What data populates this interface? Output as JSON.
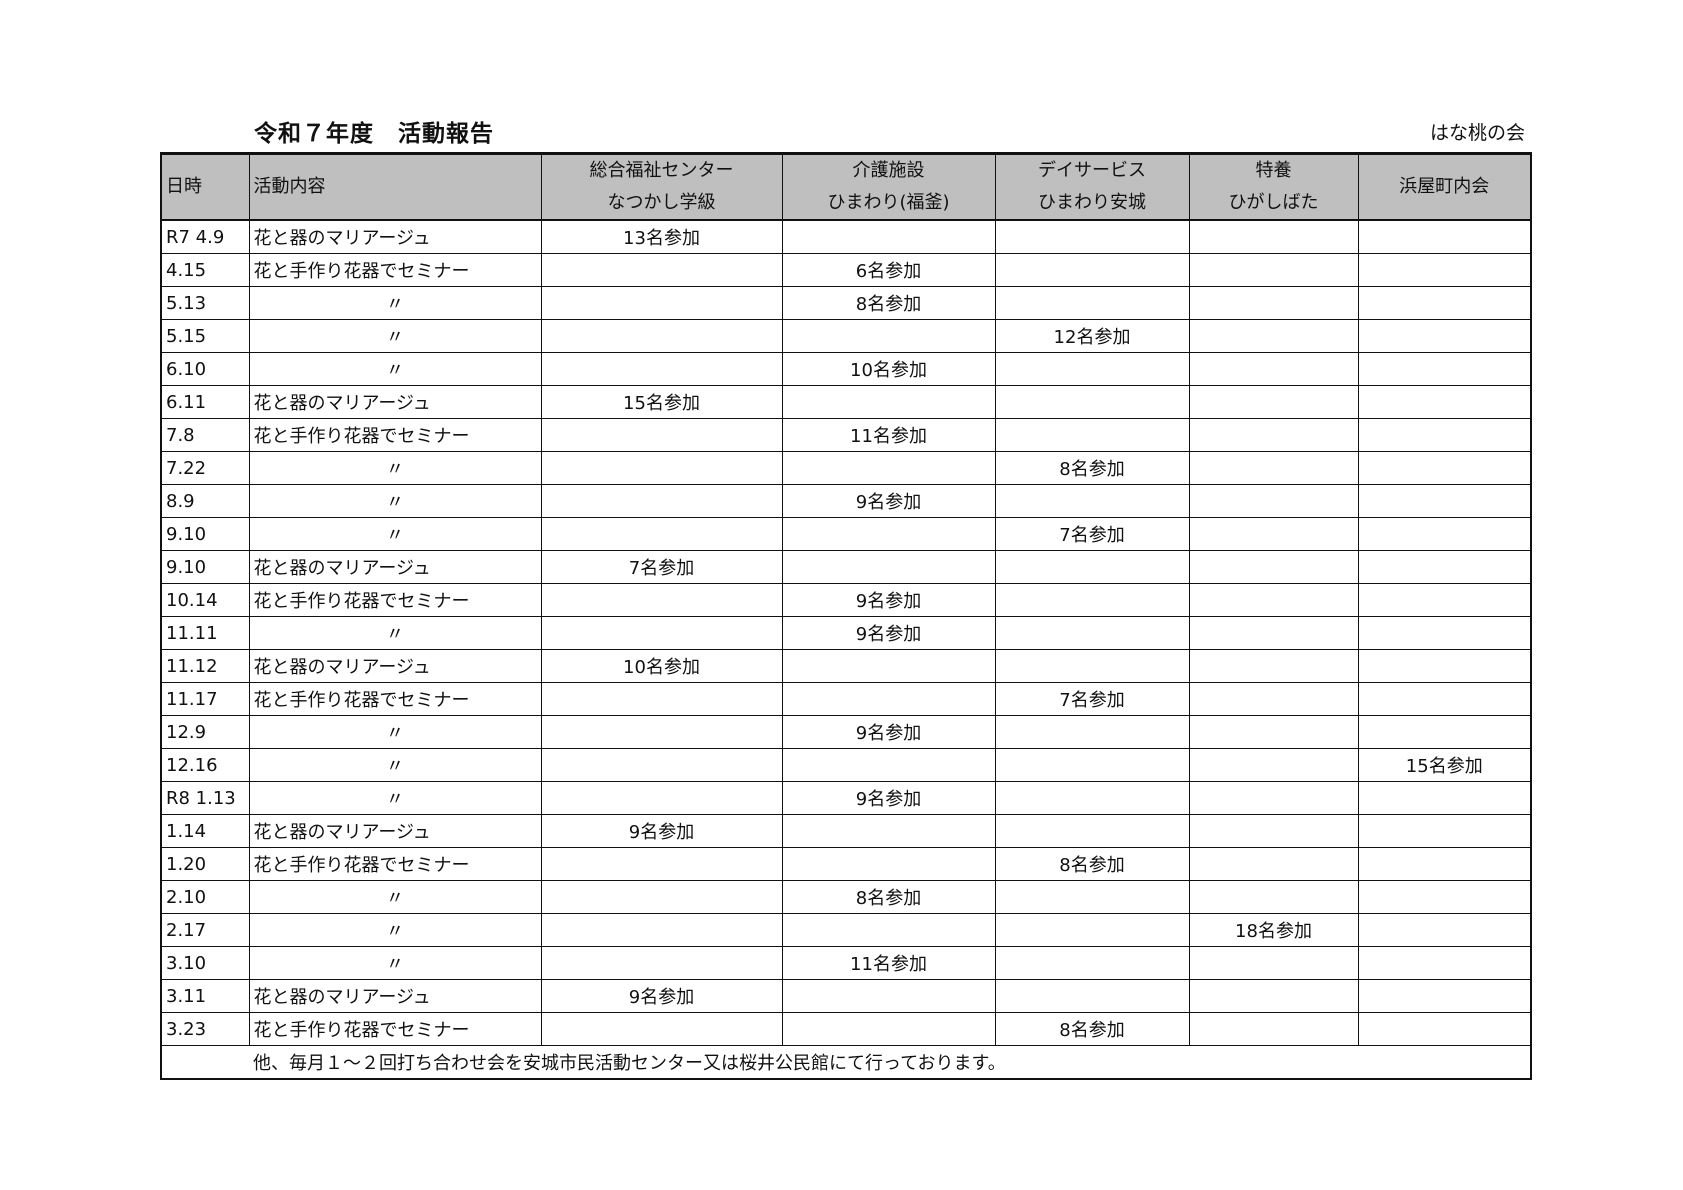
{
  "title": "令和７年度　活動報告",
  "organization": "はな桃の会",
  "headers": [
    {
      "line1": "日時",
      "line2": ""
    },
    {
      "line1": "活動内容",
      "line2": ""
    },
    {
      "line1": "総合福祉センター",
      "line2": "なつかし学級"
    },
    {
      "line1": "介護施設",
      "line2": "ひまわり(福釜)"
    },
    {
      "line1": "デイサービス",
      "line2": "ひまわり安城"
    },
    {
      "line1": "特養",
      "line2": "ひがしばた"
    },
    {
      "line1": "浜屋町内会",
      "line2": ""
    }
  ],
  "rows": [
    {
      "date": "R7 4.9",
      "activity": "花と器のマリアージュ",
      "cells": [
        "13名参加",
        "",
        "",
        "",
        ""
      ]
    },
    {
      "date": "4.15",
      "activity": "花と手作り花器でセミナー",
      "cells": [
        "",
        "6名参加",
        "",
        "",
        ""
      ]
    },
    {
      "date": "5.13",
      "activity": "〃",
      "cells": [
        "",
        "8名参加",
        "",
        "",
        ""
      ]
    },
    {
      "date": "5.15",
      "activity": "〃",
      "cells": [
        "",
        "",
        "12名参加",
        "",
        ""
      ]
    },
    {
      "date": "6.10",
      "activity": "〃",
      "cells": [
        "",
        "10名参加",
        "",
        "",
        ""
      ]
    },
    {
      "date": "6.11",
      "activity": "花と器のマリアージュ",
      "cells": [
        "15名参加",
        "",
        "",
        "",
        ""
      ]
    },
    {
      "date": "7.8",
      "activity": "花と手作り花器でセミナー",
      "cells": [
        "",
        "11名参加",
        "",
        "",
        ""
      ]
    },
    {
      "date": "7.22",
      "activity": "〃",
      "cells": [
        "",
        "",
        "8名参加",
        "",
        ""
      ]
    },
    {
      "date": "8.9",
      "activity": "〃",
      "cells": [
        "",
        "9名参加",
        "",
        "",
        ""
      ]
    },
    {
      "date": "9.10",
      "activity": "〃",
      "cells": [
        "",
        "",
        "7名参加",
        "",
        ""
      ]
    },
    {
      "date": "9.10",
      "activity": "花と器のマリアージュ",
      "cells": [
        "7名参加",
        "",
        "",
        "",
        ""
      ]
    },
    {
      "date": "10.14",
      "activity": "花と手作り花器でセミナー",
      "cells": [
        "",
        "9名参加",
        "",
        "",
        ""
      ]
    },
    {
      "date": "11.11",
      "activity": "〃",
      "cells": [
        "",
        "9名参加",
        "",
        "",
        ""
      ]
    },
    {
      "date": "11.12",
      "activity": "花と器のマリアージュ",
      "cells": [
        "10名参加",
        "",
        "",
        "",
        ""
      ]
    },
    {
      "date": "11.17",
      "activity": "花と手作り花器でセミナー",
      "cells": [
        "",
        "",
        "7名参加",
        "",
        ""
      ]
    },
    {
      "date": "12.9",
      "activity": "〃",
      "cells": [
        "",
        "9名参加",
        "",
        "",
        ""
      ]
    },
    {
      "date": "12.16",
      "activity": "〃",
      "cells": [
        "",
        "",
        "",
        "",
        "15名参加"
      ]
    },
    {
      "date": "R8 1.13",
      "activity": "〃",
      "cells": [
        "",
        "9名参加",
        "",
        "",
        ""
      ]
    },
    {
      "date": "1.14",
      "activity": "花と器のマリアージュ",
      "cells": [
        "9名参加",
        "",
        "",
        "",
        ""
      ]
    },
    {
      "date": "1.20",
      "activity": "花と手作り花器でセミナー",
      "cells": [
        "",
        "",
        "8名参加",
        "",
        ""
      ]
    },
    {
      "date": "2.10",
      "activity": "〃",
      "cells": [
        "",
        "8名参加",
        "",
        "",
        ""
      ]
    },
    {
      "date": "2.17",
      "activity": "〃",
      "cells": [
        "",
        "",
        "",
        "18名参加",
        ""
      ]
    },
    {
      "date": "3.10",
      "activity": "〃",
      "cells": [
        "",
        "11名参加",
        "",
        "",
        ""
      ]
    },
    {
      "date": "3.11",
      "activity": "花と器のマリアージュ",
      "cells": [
        "9名参加",
        "",
        "",
        "",
        ""
      ]
    },
    {
      "date": "3.23",
      "activity": "花と手作り花器でセミナー",
      "cells": [
        "",
        "",
        "8名参加",
        "",
        ""
      ]
    }
  ],
  "footer_note": "他、毎月１～２回打ち合わせ会を安城市民活動センター又は桜井公民館にて行っております。"
}
